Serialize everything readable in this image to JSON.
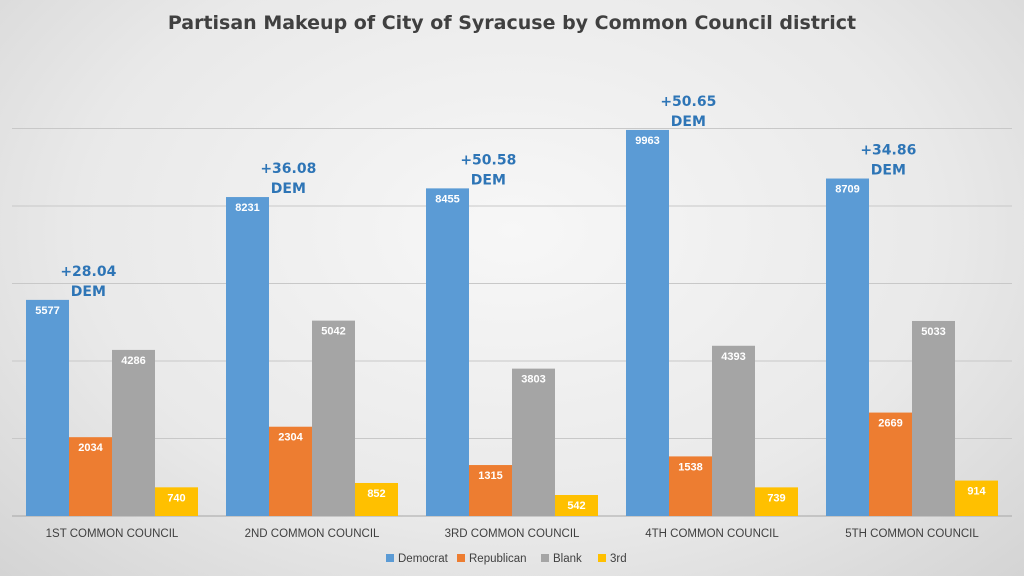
{
  "chart_data": {
    "type": "bar",
    "title": "Partisan Makeup of City of Syracuse by Common Council district",
    "categories": [
      "1ST COMMON COUNCIL",
      "2ND COMMON COUNCIL",
      "3RD COMMON COUNCIL",
      "4TH COMMON COUNCIL",
      "5TH COMMON COUNCIL"
    ],
    "series": [
      {
        "name": "Democrat",
        "color": "#5b9bd5",
        "values": [
          5577,
          8231,
          8455,
          9963,
          8709
        ]
      },
      {
        "name": "Republican",
        "color": "#ed7d31",
        "values": [
          2034,
          2304,
          1315,
          1538,
          2669
        ]
      },
      {
        "name": "Blank",
        "color": "#a5a5a5",
        "values": [
          4286,
          5042,
          3803,
          4393,
          5033
        ]
      },
      {
        "name": "3rd",
        "color": "#ffc000",
        "values": [
          740,
          852,
          542,
          739,
          914
        ]
      }
    ],
    "annotations": [
      {
        "category": "1ST COMMON COUNCIL",
        "line1": "+28.04",
        "line2": "DEM"
      },
      {
        "category": "2ND COMMON COUNCIL",
        "line1": "+36.08",
        "line2": "DEM"
      },
      {
        "category": "3RD COMMON COUNCIL",
        "line1": "+50.58",
        "line2": "DEM"
      },
      {
        "category": "4TH COMMON COUNCIL",
        "line1": "+50.65",
        "line2": "DEM"
      },
      {
        "category": "5TH COMMON COUNCIL",
        "line1": "+34.86",
        "line2": "DEM"
      }
    ],
    "xlabel": "",
    "ylabel": "",
    "ylim": [
      0,
      10000
    ],
    "grid": true,
    "legend": "bottom"
  }
}
